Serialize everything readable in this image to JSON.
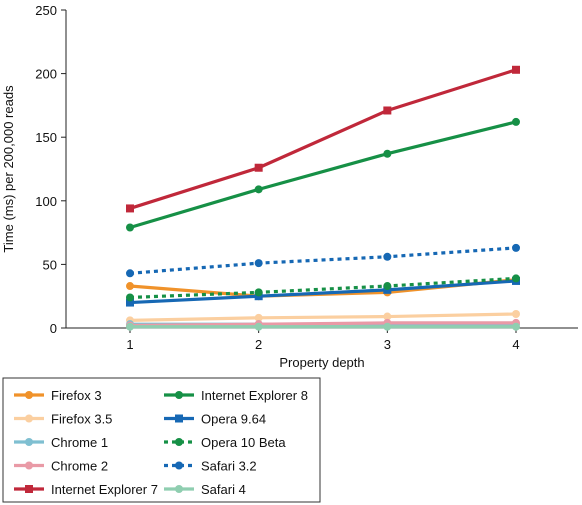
{
  "chart_data": {
    "type": "line",
    "xlabel": "Property depth",
    "ylabel": "Time (ms) per 200,000 reads",
    "x": [
      1,
      2,
      3,
      4
    ],
    "xlim": [
      0.5,
      4.5
    ],
    "ylim": [
      0,
      250
    ],
    "yticks": [
      0,
      50,
      100,
      150,
      200,
      250
    ],
    "xticks": [
      1,
      2,
      3,
      4
    ],
    "grid": false,
    "legend_position": "bottom",
    "series": [
      {
        "name": "Firefox 3",
        "values": [
          33,
          25,
          28,
          38
        ],
        "color": "#f0922a",
        "marker": "circle",
        "dashed": false
      },
      {
        "name": "Firefox 3.5",
        "values": [
          6,
          8,
          9,
          11
        ],
        "color": "#fbcfa0",
        "marker": "circle",
        "dashed": false
      },
      {
        "name": "Chrome 1",
        "values": [
          3,
          3,
          3,
          3
        ],
        "color": "#7fbfd1",
        "marker": "circle",
        "dashed": false
      },
      {
        "name": "Chrome 2",
        "values": [
          2,
          3,
          4,
          4
        ],
        "color": "#e99aa6",
        "marker": "circle",
        "dashed": false
      },
      {
        "name": "Internet Explorer 7",
        "values": [
          94,
          126,
          171,
          203
        ],
        "color": "#c0283a",
        "marker": "square",
        "dashed": false
      },
      {
        "name": "Internet Explorer 8",
        "values": [
          79,
          109,
          137,
          162
        ],
        "color": "#169046",
        "marker": "circle",
        "dashed": false
      },
      {
        "name": "Opera 9.64",
        "values": [
          20,
          25,
          30,
          37
        ],
        "color": "#1668b4",
        "marker": "square",
        "dashed": false
      },
      {
        "name": "Opera 10 Beta",
        "values": [
          24,
          28,
          33,
          39
        ],
        "color": "#169046",
        "marker": "circle",
        "dashed": true
      },
      {
        "name": "Safari 3.2",
        "values": [
          43,
          51,
          56,
          63
        ],
        "color": "#1668b4",
        "marker": "circle",
        "dashed": true
      },
      {
        "name": "Safari 4",
        "values": [
          1,
          1,
          1,
          1
        ],
        "color": "#8fceb0",
        "marker": "circle",
        "dashed": false
      }
    ],
    "legend_columns": [
      [
        "Firefox 3",
        "Firefox 3.5",
        "Chrome 1",
        "Chrome 2",
        "Internet Explorer 7"
      ],
      [
        "Internet Explorer 8",
        "Opera 9.64",
        "Opera 10 Beta",
        "Safari 3.2",
        "Safari 4"
      ]
    ]
  }
}
